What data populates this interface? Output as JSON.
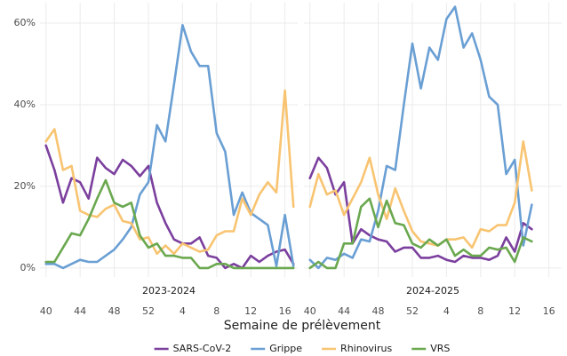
{
  "chart_data": {
    "type": "line",
    "xlabel": "Semaine de prélèvement",
    "ylim": [
      -2.2,
      65
    ],
    "yticks": [
      {
        "value": 0,
        "label": "0%"
      },
      {
        "value": 20,
        "label": "20%"
      },
      {
        "value": 40,
        "label": "40%"
      },
      {
        "value": 60,
        "label": "60%"
      }
    ],
    "xlim": [
      -0.7,
      29.5
    ],
    "xticks": [
      {
        "value": 0,
        "label": "40"
      },
      {
        "value": 4,
        "label": "44"
      },
      {
        "value": 8,
        "label": "48"
      },
      {
        "value": 12,
        "label": "52"
      },
      {
        "value": 16,
        "label": "4"
      },
      {
        "value": 20,
        "label": "8"
      },
      {
        "value": 24,
        "label": "12"
      },
      {
        "value": 28,
        "label": "16"
      }
    ],
    "grid": true,
    "legend": "bottom",
    "series": [
      {
        "name": "SARS-CoV-2",
        "color": "#7b3f9e"
      },
      {
        "name": "Grippe",
        "color": "#6a9fd4"
      },
      {
        "name": "Rhinovirus",
        "color": "#f8c471"
      },
      {
        "name": "VRS",
        "color": "#6aa84f"
      }
    ],
    "panels": [
      {
        "title": "2023-2024",
        "x": [
          0,
          1,
          2,
          3,
          4,
          5,
          6,
          7,
          8,
          9,
          10,
          11,
          12,
          13,
          14,
          15,
          16,
          17,
          18,
          19,
          20,
          21,
          22,
          23,
          24,
          25,
          26,
          27,
          28,
          29
        ],
        "series": [
          {
            "values": [
              30,
              24,
              16,
              22,
              21,
              17,
              27,
              24.5,
              23,
              26.5,
              25,
              22.5,
              25,
              16,
              11,
              7,
              6,
              6,
              7.5,
              3,
              2.5,
              0,
              1,
              0,
              3,
              1.5,
              3,
              4,
              4.5,
              1
            ]
          },
          {
            "values": [
              1,
              1,
              0,
              1,
              2,
              1.5,
              1.5,
              3,
              4.5,
              7,
              10,
              18,
              21,
              35,
              31,
              45,
              59.5,
              53,
              49.5,
              49.5,
              33,
              28.5,
              13,
              18.5,
              13.5,
              12,
              10.5,
              0.5,
              13,
              0.5
            ]
          },
          {
            "values": [
              31,
              34,
              24,
              25,
              14,
              13,
              12.5,
              14.5,
              15.5,
              11.5,
              11,
              7,
              7.5,
              3.5,
              5.5,
              3.5,
              6,
              5,
              4,
              4.5,
              8,
              9,
              9,
              17,
              13,
              18,
              21,
              18.5,
              43.5,
              15
            ]
          },
          {
            "values": [
              1.5,
              1.5,
              5,
              8.5,
              8,
              12,
              17,
              21.5,
              16,
              15,
              16,
              8,
              5,
              6,
              3,
              3,
              2.5,
              2.5,
              0,
              0,
              1,
              1,
              0,
              0,
              0,
              0,
              0,
              0,
              0,
              0
            ]
          }
        ]
      },
      {
        "title": "2024-2025",
        "x": [
          0,
          1,
          2,
          3,
          4,
          5,
          6,
          7,
          8,
          9,
          10,
          11,
          12,
          13,
          14,
          15,
          16,
          17,
          18,
          19,
          20,
          21,
          22,
          23,
          24,
          25,
          26
        ],
        "series": [
          {
            "values": [
              22,
              27,
              24.5,
              18,
              21,
              6,
              9.5,
              8,
              7,
              6.5,
              4,
              5,
              5,
              2.5,
              2.5,
              3,
              2,
              1.5,
              3,
              2.5,
              2.5,
              2,
              3,
              7.5,
              4,
              11,
              9.5
            ]
          },
          {
            "values": [
              2,
              0,
              2.5,
              2,
              3.5,
              2.5,
              7,
              6.5,
              14,
              25,
              24,
              40,
              55,
              44,
              54,
              51,
              61,
              64,
              54,
              57.5,
              51,
              42,
              40,
              23,
              26.5,
              5.5,
              15.5
            ]
          },
          {
            "values": [
              15,
              23,
              18,
              19,
              13,
              17,
              21,
              27,
              18,
              12,
              19.5,
              14,
              9,
              6.5,
              6,
              5.5,
              7,
              7,
              7.5,
              5,
              9.5,
              9,
              10.5,
              10.5,
              16,
              31,
              19
            ]
          },
          {
            "values": [
              0,
              1.5,
              0,
              0,
              6,
              6,
              15,
              17,
              10,
              16.5,
              11,
              10.5,
              6,
              5,
              7,
              5.5,
              7,
              3,
              4.5,
              3,
              3,
              5,
              4.5,
              5,
              1.5,
              7.5,
              6.5
            ]
          }
        ]
      }
    ]
  }
}
